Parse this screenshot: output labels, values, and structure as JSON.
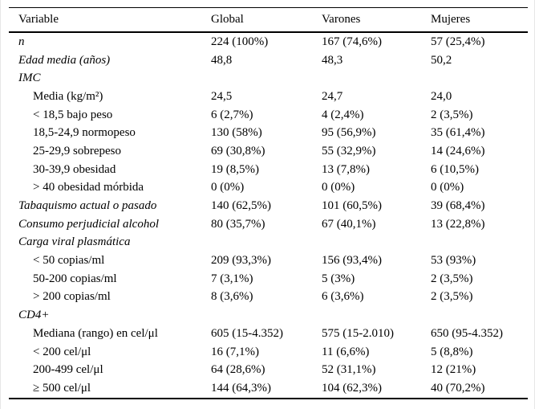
{
  "table": {
    "columns": [
      "Variable",
      "Global",
      "Varones",
      "Mujeres"
    ],
    "rows": [
      {
        "label": "n",
        "style": "section",
        "values": [
          "224 (100%)",
          "167 (74,6%)",
          "57 (25,4%)"
        ]
      },
      {
        "label": "Edad media (años)",
        "style": "section",
        "values": [
          "48,8",
          "48,3",
          "50,2"
        ]
      },
      {
        "label": "IMC",
        "style": "section",
        "values": [
          "",
          "",
          ""
        ]
      },
      {
        "label": "Media (kg/m²)",
        "style": "sub",
        "values": [
          "24,5",
          "24,7",
          "24,0"
        ]
      },
      {
        "label": "< 18,5 bajo peso",
        "style": "sub",
        "values": [
          "6 (2,7%)",
          "4 (2,4%)",
          "2 (3,5%)"
        ]
      },
      {
        "label": "18,5-24,9 normopeso",
        "style": "sub",
        "values": [
          "130 (58%)",
          "95 (56,9%)",
          "35 (61,4%)"
        ]
      },
      {
        "label": "25-29,9 sobrepeso",
        "style": "sub",
        "values": [
          "69 (30,8%)",
          "55 (32,9%)",
          "14 (24,6%)"
        ]
      },
      {
        "label": "30-39,9 obesidad",
        "style": "sub",
        "values": [
          "19 (8,5%)",
          "13 (7,8%)",
          "6 (10,5%)"
        ]
      },
      {
        "label": "> 40 obesidad mórbida",
        "style": "sub",
        "values": [
          "0 (0%)",
          "0 (0%)",
          "0 (0%)"
        ]
      },
      {
        "label": "Tabaquismo actual o pasado",
        "style": "section",
        "values": [
          "140 (62,5%)",
          "101 (60,5%)",
          "39 (68,4%)"
        ]
      },
      {
        "label": "Consumo perjudicial alcohol",
        "style": "section",
        "values": [
          "80 (35,7%)",
          "67 (40,1%)",
          "13 (22,8%)"
        ]
      },
      {
        "label": "Carga viral plasmática",
        "style": "section",
        "values": [
          "",
          "",
          ""
        ]
      },
      {
        "label": "< 50 copias/ml",
        "style": "sub",
        "values": [
          "209 (93,3%)",
          "156 (93,4%)",
          "53 (93%)"
        ]
      },
      {
        "label": "50-200 copias/ml",
        "style": "sub",
        "values": [
          "7 (3,1%)",
          "5 (3%)",
          "2 (3,5%)"
        ]
      },
      {
        "label": "> 200 copias/ml",
        "style": "sub",
        "values": [
          "8 (3,6%)",
          "6 (3,6%)",
          "2 (3,5%)"
        ]
      },
      {
        "label": "CD4+",
        "style": "section",
        "values": [
          "",
          "",
          ""
        ]
      },
      {
        "label": "Mediana (rango) en cel/μl",
        "style": "sub",
        "values": [
          "605 (15-4.352)",
          "575 (15-2.010)",
          "650 (95-4.352)"
        ]
      },
      {
        "label": "< 200 cel/μl",
        "style": "sub",
        "values": [
          "16 (7,1%)",
          "11 (6,6%)",
          "5 (8,8%)"
        ]
      },
      {
        "label": "200-499 cel/μl",
        "style": "sub",
        "values": [
          "64 (28,6%)",
          "52 (31,1%)",
          "12 (21%)"
        ]
      },
      {
        "label": "≥ 500 cel/μl",
        "style": "sub",
        "values": [
          "144 (64,3%)",
          "104 (62,3%)",
          "40 (70,2%)"
        ]
      }
    ]
  }
}
